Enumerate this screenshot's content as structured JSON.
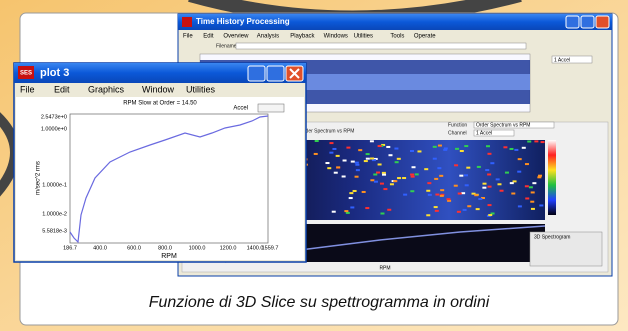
{
  "main_window": {
    "title": "Time History Processing",
    "menu": [
      "File",
      "Edit",
      "Overview",
      "Analysis",
      "Playback",
      "Windows",
      "Utilities",
      "Tools",
      "Operate"
    ],
    "filename_label": "Filename",
    "waveform_dropdown": "1 Accel",
    "spectrum_title": "Order Spectrum vs RPM",
    "function_label": "Function",
    "function_value": "Order Spectrum vs RPM",
    "channel_label": "Channel",
    "channel_value": "1 Accel",
    "x_label": "RPM",
    "side_panel": "3D Spectrogram"
  },
  "plot_window": {
    "icon": "SES",
    "title": "plot 3",
    "menu": [
      "File",
      "Edit",
      "Graphics",
      "Window",
      "Utilities"
    ],
    "chart_title": "RPM Slow at Order = 14.50",
    "dropdown": "Accel",
    "y_label": "m/sec^2 rms",
    "x_label": "RPM",
    "yticks": [
      "2.5473e+0",
      "1.0000e+0",
      "1.0000e-1",
      "1.0000e-2",
      "5.5818e-3"
    ],
    "xticks": [
      "186.7",
      "400.0",
      "600.0",
      "800.0",
      "1000.0",
      "1200.0",
      "1400.0",
      "1559.7"
    ]
  },
  "caption": "Funzione di 3D Slice su spettrogramma in ordini"
}
